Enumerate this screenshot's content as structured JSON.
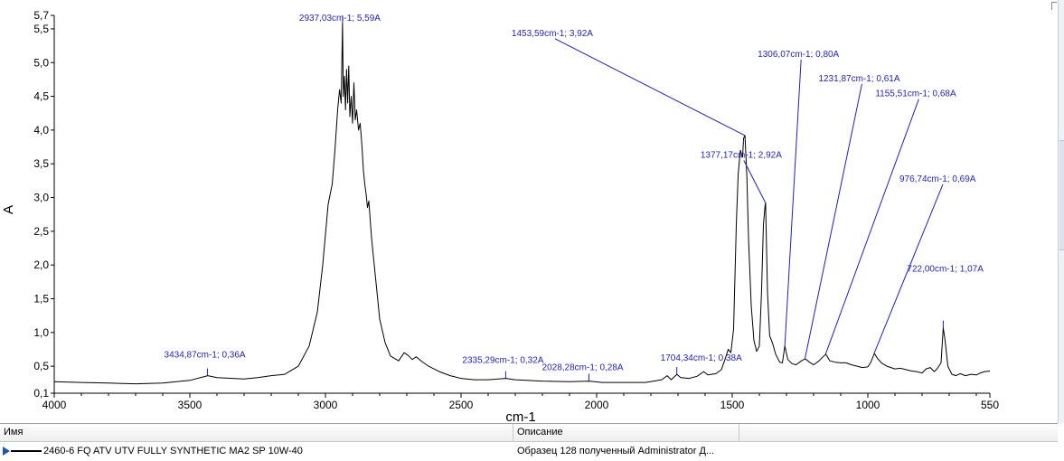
{
  "chart_data": {
    "type": "line",
    "title": "",
    "xlabel": "cm-1",
    "ylabel": "A",
    "xlim": [
      4000,
      550
    ],
    "ylim": [
      0.1,
      5.7
    ],
    "grid": false,
    "x_ticks": [
      4000,
      3500,
      3000,
      2500,
      2000,
      1500,
      1000,
      550
    ],
    "x_tick_labels": [
      "4000",
      "3500",
      "3000",
      "2500",
      "2000",
      "1500",
      "1000",
      "550"
    ],
    "y_ticks": [
      0.1,
      0.5,
      1.0,
      1.5,
      2.0,
      2.5,
      3.0,
      3.5,
      4.0,
      4.5,
      5.0,
      5.5,
      5.7
    ],
    "y_tick_labels": [
      "0,1",
      "0,5",
      "1,0",
      "1,5",
      "2,0",
      "2,5",
      "3,0",
      "3,5",
      "4,0",
      "4,5",
      "5,0",
      "5,5",
      "5,7"
    ],
    "series": [
      {
        "color": "#000000",
        "points": [
          [
            4000,
            0.27
          ],
          [
            3900,
            0.26
          ],
          [
            3800,
            0.25
          ],
          [
            3700,
            0.24
          ],
          [
            3600,
            0.25
          ],
          [
            3500,
            0.29
          ],
          [
            3434,
            0.36
          ],
          [
            3400,
            0.33
          ],
          [
            3300,
            0.31
          ],
          [
            3250,
            0.33
          ],
          [
            3200,
            0.36
          ],
          [
            3150,
            0.38
          ],
          [
            3100,
            0.5
          ],
          [
            3060,
            0.8
          ],
          [
            3030,
            1.3
          ],
          [
            3010,
            2.0
          ],
          [
            2990,
            2.9
          ],
          [
            2975,
            3.2
          ],
          [
            2965,
            3.7
          ],
          [
            2955,
            4.3
          ],
          [
            2948,
            4.6
          ],
          [
            2942,
            4.4
          ],
          [
            2937,
            5.59
          ],
          [
            2934,
            4.5
          ],
          [
            2930,
            4.8
          ],
          [
            2926,
            4.3
          ],
          [
            2922,
            4.9
          ],
          [
            2918,
            4.4
          ],
          [
            2914,
            4.95
          ],
          [
            2910,
            4.2
          ],
          [
            2905,
            4.5
          ],
          [
            2900,
            4.1
          ],
          [
            2895,
            4.7
          ],
          [
            2890,
            4.15
          ],
          [
            2885,
            4.3
          ],
          [
            2878,
            4.0
          ],
          [
            2872,
            4.1
          ],
          [
            2866,
            3.8
          ],
          [
            2860,
            3.4
          ],
          [
            2855,
            3.2
          ],
          [
            2850,
            3.05
          ],
          [
            2845,
            2.85
          ],
          [
            2840,
            2.95
          ],
          [
            2830,
            2.4
          ],
          [
            2815,
            1.8
          ],
          [
            2800,
            1.2
          ],
          [
            2780,
            0.85
          ],
          [
            2760,
            0.65
          ],
          [
            2730,
            0.58
          ],
          [
            2710,
            0.7
          ],
          [
            2695,
            0.66
          ],
          [
            2680,
            0.6
          ],
          [
            2665,
            0.64
          ],
          [
            2645,
            0.57
          ],
          [
            2620,
            0.5
          ],
          [
            2580,
            0.42
          ],
          [
            2540,
            0.36
          ],
          [
            2500,
            0.32
          ],
          [
            2450,
            0.3
          ],
          [
            2400,
            0.3
          ],
          [
            2335,
            0.32
          ],
          [
            2300,
            0.3
          ],
          [
            2200,
            0.28
          ],
          [
            2100,
            0.27
          ],
          [
            2028,
            0.28
          ],
          [
            1980,
            0.26
          ],
          [
            1900,
            0.26
          ],
          [
            1820,
            0.26
          ],
          [
            1760,
            0.3
          ],
          [
            1740,
            0.36
          ],
          [
            1725,
            0.3
          ],
          [
            1704,
            0.38
          ],
          [
            1690,
            0.33
          ],
          [
            1660,
            0.32
          ],
          [
            1630,
            0.35
          ],
          [
            1605,
            0.42
          ],
          [
            1590,
            0.37
          ],
          [
            1560,
            0.39
          ],
          [
            1540,
            0.45
          ],
          [
            1525,
            0.62
          ],
          [
            1515,
            0.75
          ],
          [
            1505,
            0.7
          ],
          [
            1495,
            1.05
          ],
          [
            1485,
            2.6
          ],
          [
            1478,
            3.35
          ],
          [
            1470,
            3.7
          ],
          [
            1462,
            3.6
          ],
          [
            1458,
            3.88
          ],
          [
            1453,
            3.92
          ],
          [
            1446,
            3.3
          ],
          [
            1440,
            2.4
          ],
          [
            1430,
            1.4
          ],
          [
            1420,
            0.88
          ],
          [
            1410,
            0.72
          ],
          [
            1400,
            0.8
          ],
          [
            1392,
            1.6
          ],
          [
            1385,
            2.6
          ],
          [
            1379,
            2.88
          ],
          [
            1377,
            2.92
          ],
          [
            1370,
            1.6
          ],
          [
            1362,
            0.95
          ],
          [
            1352,
            0.85
          ],
          [
            1340,
            0.68
          ],
          [
            1325,
            0.56
          ],
          [
            1315,
            0.55
          ],
          [
            1306,
            0.8
          ],
          [
            1295,
            0.6
          ],
          [
            1280,
            0.54
          ],
          [
            1265,
            0.52
          ],
          [
            1245,
            0.58
          ],
          [
            1231,
            0.61
          ],
          [
            1215,
            0.56
          ],
          [
            1200,
            0.52
          ],
          [
            1180,
            0.58
          ],
          [
            1165,
            0.64
          ],
          [
            1155,
            0.68
          ],
          [
            1140,
            0.58
          ],
          [
            1120,
            0.56
          ],
          [
            1100,
            0.55
          ],
          [
            1080,
            0.55
          ],
          [
            1060,
            0.52
          ],
          [
            1040,
            0.5
          ],
          [
            1020,
            0.48
          ],
          [
            1000,
            0.49
          ],
          [
            990,
            0.55
          ],
          [
            976,
            0.69
          ],
          [
            965,
            0.62
          ],
          [
            950,
            0.55
          ],
          [
            930,
            0.5
          ],
          [
            900,
            0.46
          ],
          [
            880,
            0.47
          ],
          [
            860,
            0.45
          ],
          [
            840,
            0.43
          ],
          [
            820,
            0.42
          ],
          [
            800,
            0.4
          ],
          [
            785,
            0.46
          ],
          [
            770,
            0.48
          ],
          [
            755,
            0.42
          ],
          [
            745,
            0.46
          ],
          [
            730,
            0.55
          ],
          [
            722,
            1.07
          ],
          [
            715,
            0.88
          ],
          [
            705,
            0.5
          ],
          [
            690,
            0.38
          ],
          [
            675,
            0.36
          ],
          [
            660,
            0.39
          ],
          [
            640,
            0.36
          ],
          [
            620,
            0.38
          ],
          [
            600,
            0.37
          ],
          [
            585,
            0.4
          ],
          [
            570,
            0.42
          ],
          [
            550,
            0.43
          ]
        ]
      }
    ],
    "annotations": [
      {
        "x": 3434.87,
        "y": 0.36,
        "text": "3434,87cm-1; 0,36A"
      },
      {
        "x": 2937.03,
        "y": 5.59,
        "text": "2937,03cm-1; 5,59A"
      },
      {
        "x": 2335.29,
        "y": 0.32,
        "text": "2335,29cm-1; 0,32A"
      },
      {
        "x": 2028.28,
        "y": 0.28,
        "text": "2028,28cm-1; 0,28A"
      },
      {
        "x": 1704.34,
        "y": 0.38,
        "text": "1704,34cm-1; 0,38A"
      },
      {
        "x": 1453.59,
        "y": 3.92,
        "text": "1453,59cm-1; 3,92A"
      },
      {
        "x": 1377.17,
        "y": 2.92,
        "text": "1377,17cm-1; 2,92A"
      },
      {
        "x": 1306.07,
        "y": 0.8,
        "text": "1306,07cm-1; 0,80A"
      },
      {
        "x": 1231.87,
        "y": 0.61,
        "text": "1231,87cm-1; 0,61A"
      },
      {
        "x": 1155.51,
        "y": 0.68,
        "text": "1155,51cm-1; 0,68A"
      },
      {
        "x": 976.74,
        "y": 0.69,
        "text": "976,74cm-1; 0,69A"
      },
      {
        "x": 722.0,
        "y": 1.07,
        "text": "722,00cm-1; 1,07A"
      }
    ],
    "annotation_color": "#1f1fc8"
  },
  "legend_table": {
    "columns": [
      "Имя",
      "Описание"
    ],
    "rows": [
      {
        "name": "2460-6 FQ ATV UTV FULLY SYNTHETIC MA2 SP 10W-40",
        "description": "Образец 128 полученный Administrator Д..."
      }
    ]
  }
}
